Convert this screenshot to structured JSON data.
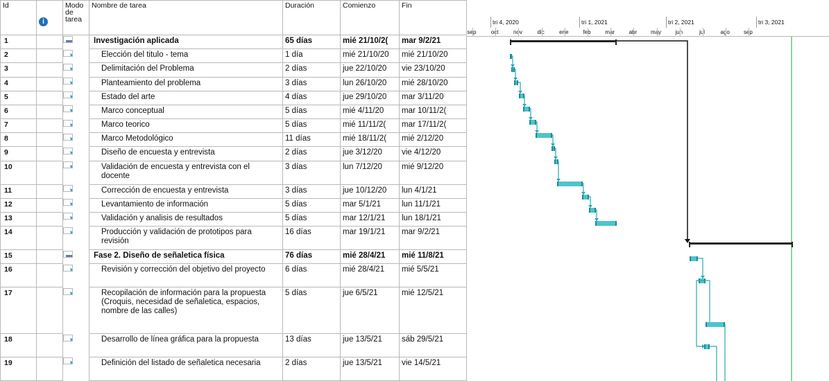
{
  "headers": {
    "id": "Id",
    "info": "i",
    "mode": "Modo de tarea",
    "name": "Nombre de tarea",
    "duration": "Duración",
    "start": "Comienzo",
    "end": "Fin"
  },
  "timeline": {
    "quarters": [
      "tri 4, 2020",
      "tri 1, 2021",
      "tri 2, 2021",
      "tri 3, 2021"
    ],
    "months": [
      "sep",
      "oct",
      "nov",
      "dic",
      "ene",
      "feb",
      "mar",
      "abr",
      "may",
      "jun",
      "jul",
      "ago",
      "sep"
    ]
  },
  "tasks": [
    {
      "id": "1",
      "name": "Investigación aplicada",
      "duration": "65 días",
      "start": "mié 21/10/2(",
      "end": "mar 9/2/21",
      "summary": true
    },
    {
      "id": "2",
      "name": "Elección del titulo - tema",
      "duration": "1 día",
      "start": "mié 21/10/20",
      "end": "mié 21/10/20"
    },
    {
      "id": "3",
      "name": "Delimitación del Problema",
      "duration": "2 días",
      "start": "jue 22/10/20",
      "end": "vie 23/10/20"
    },
    {
      "id": "4",
      "name": "Planteamiento del problema",
      "duration": "3 días",
      "start": "lun 26/10/20",
      "end": "mié 28/10/20"
    },
    {
      "id": "5",
      "name": "Estado del arte",
      "duration": "4 días",
      "start": "jue 29/10/20",
      "end": "mar 3/11/20"
    },
    {
      "id": "6",
      "name": "Marco conceptual",
      "duration": "5 días",
      "start": "mié 4/11/20",
      "end": "mar 10/11/2("
    },
    {
      "id": "7",
      "name": "Marco teorico",
      "duration": "5 días",
      "start": "mié 11/11/2(",
      "end": "mar 17/11/2("
    },
    {
      "id": "8",
      "name": "Marco Metodológico",
      "duration": "11 días",
      "start": "mié 18/11/2(",
      "end": "mié 2/12/20"
    },
    {
      "id": "9",
      "name": "Diseño de encuesta y entrevista",
      "duration": "2 días",
      "start": "jue 3/12/20",
      "end": "vie 4/12/20"
    },
    {
      "id": "10",
      "name": "Validación de encuesta y entrevista con el docente",
      "duration": "3 días",
      "start": "lun 7/12/20",
      "end": "mié 9/12/20"
    },
    {
      "id": "11",
      "name": "Corrección de encuesta y entrevista",
      "duration": "3 días",
      "start": "jue 10/12/20",
      "end": "lun 4/1/21"
    },
    {
      "id": "12",
      "name": "Levantamiento de información",
      "duration": "5 días",
      "start": "mar 5/1/21",
      "end": "lun 11/1/21"
    },
    {
      "id": "13",
      "name": "Validación y analisis de resultados",
      "duration": "5 días",
      "start": "mar 12/1/21",
      "end": "lun 18/1/21"
    },
    {
      "id": "14",
      "name": "Producción y validación de prototipos para revisión",
      "duration": "16 días",
      "start": "mar 19/1/21",
      "end": "mar 9/2/21"
    },
    {
      "id": "15",
      "name": "Fase 2. Diseño de señaletica física",
      "duration": "76 días",
      "start": "mié 28/4/21",
      "end": "mié 11/8/21",
      "summary": true
    },
    {
      "id": "16",
      "name": "Revisión y corrección del objetivo del proyecto",
      "duration": "6 días",
      "start": "mié 28/4/21",
      "end": "mié 5/5/21"
    },
    {
      "id": "17",
      "name": "Recopilación de información para la propuesta (Croquis, necesidad de señaletica, espacios, nombre de las calles)",
      "duration": "5 días",
      "start": "jue 6/5/21",
      "end": "mié 12/5/21"
    },
    {
      "id": "18",
      "name": "Desarrollo de línea gráfica para la propuesta",
      "duration": "13 días",
      "start": "jue 13/5/21",
      "end": "sáb 29/5/21"
    },
    {
      "id": "19",
      "name": "Definición del listado de señaletica necesaria",
      "duration": "2 días",
      "start": "jue 13/5/21",
      "end": "vie 14/5/21"
    }
  ],
  "colors": {
    "task_bar": "#4fc3cc",
    "task_bar_end": "#1e8a96",
    "summary_bar": "#222222",
    "link": "#2aa7b4",
    "current_date": "#8fd19e",
    "summary_mode_icon": "#5b7fb5",
    "manual_mode_icon": "#2aa9c7"
  }
}
